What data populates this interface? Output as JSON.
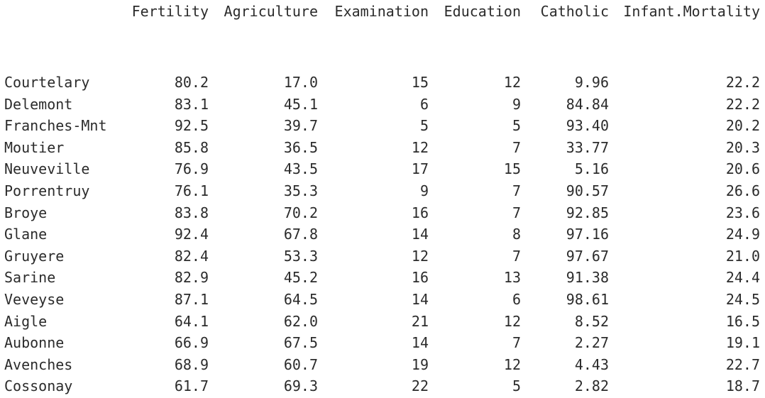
{
  "table": {
    "columns": [
      "Fertility",
      "Agriculture",
      "Examination",
      "Education",
      "Catholic",
      "Infant.Mortality"
    ],
    "rows": [
      {
        "name": "Courtelary",
        "values": [
          "80.2",
          "17.0",
          "15",
          "12",
          "9.96",
          "22.2"
        ]
      },
      {
        "name": "Delemont",
        "values": [
          "83.1",
          "45.1",
          "6",
          "9",
          "84.84",
          "22.2"
        ]
      },
      {
        "name": "Franches-Mnt",
        "values": [
          "92.5",
          "39.7",
          "5",
          "5",
          "93.40",
          "20.2"
        ]
      },
      {
        "name": "Moutier",
        "values": [
          "85.8",
          "36.5",
          "12",
          "7",
          "33.77",
          "20.3"
        ]
      },
      {
        "name": "Neuveville",
        "values": [
          "76.9",
          "43.5",
          "17",
          "15",
          "5.16",
          "20.6"
        ]
      },
      {
        "name": "Porrentruy",
        "values": [
          "76.1",
          "35.3",
          "9",
          "7",
          "90.57",
          "26.6"
        ]
      },
      {
        "name": "Broye",
        "values": [
          "83.8",
          "70.2",
          "16",
          "7",
          "92.85",
          "23.6"
        ]
      },
      {
        "name": "Glane",
        "values": [
          "92.4",
          "67.8",
          "14",
          "8",
          "97.16",
          "24.9"
        ]
      },
      {
        "name": "Gruyere",
        "values": [
          "82.4",
          "53.3",
          "12",
          "7",
          "97.67",
          "21.0"
        ]
      },
      {
        "name": "Sarine",
        "values": [
          "82.9",
          "45.2",
          "16",
          "13",
          "91.38",
          "24.4"
        ]
      },
      {
        "name": "Veveyse",
        "values": [
          "87.1",
          "64.5",
          "14",
          "6",
          "98.61",
          "24.5"
        ]
      },
      {
        "name": "Aigle",
        "values": [
          "64.1",
          "62.0",
          "21",
          "12",
          "8.52",
          "16.5"
        ]
      },
      {
        "name": "Aubonne",
        "values": [
          "66.9",
          "67.5",
          "14",
          "7",
          "2.27",
          "19.1"
        ]
      },
      {
        "name": "Avenches",
        "values": [
          "68.9",
          "60.7",
          "19",
          "12",
          "4.43",
          "22.7"
        ]
      },
      {
        "name": "Cossonay",
        "values": [
          "61.7",
          "69.3",
          "22",
          "5",
          "2.82",
          "18.7"
        ]
      }
    ]
  }
}
